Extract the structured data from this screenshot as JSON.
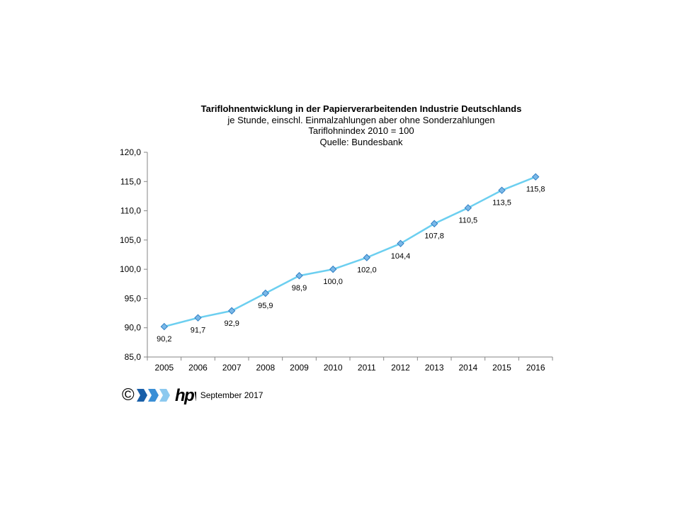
{
  "chart_data": {
    "type": "line",
    "title": "Tariflohnentwicklung in der Papierverarbeitenden Industrie Deutschlands",
    "subtitle_lines": [
      "je Stunde, einschl. Einmalzahlungen  aber ohne Sonderzahlungen",
      "Tariflohnindex 2010 = 100",
      "Quelle: Bundesbank"
    ],
    "categories": [
      "2005",
      "2006",
      "2007",
      "2008",
      "2009",
      "2010",
      "2011",
      "2012",
      "2013",
      "2014",
      "2015",
      "2016"
    ],
    "values": [
      90.2,
      91.7,
      92.9,
      95.9,
      98.9,
      100.0,
      102.0,
      104.4,
      107.8,
      110.5,
      113.5,
      115.8
    ],
    "value_labels": [
      "90,2",
      "91,7",
      "92,9",
      "95,9",
      "98,9",
      "100,0",
      "102,0",
      "104,4",
      "107,8",
      "110,5",
      "113,5",
      "115,8"
    ],
    "ylim": [
      85,
      120
    ],
    "yticks": [
      85,
      90,
      95,
      100,
      105,
      110,
      115,
      120
    ],
    "ytick_labels": [
      "85,0",
      "90,0",
      "95,0",
      "100,0",
      "105,0",
      "110,0",
      "115,0",
      "120,0"
    ],
    "grid": false,
    "legend": "none",
    "line_color": "#6ccff0",
    "marker_fill": "#7ab8e8",
    "marker_stroke": "#2e7fc4"
  },
  "footer": {
    "copyright": "©",
    "logo_text": "hpv",
    "date": "September 2017",
    "logo_colors": [
      "#1a5fa8",
      "#3b8fd6",
      "#8cc9ef"
    ]
  }
}
